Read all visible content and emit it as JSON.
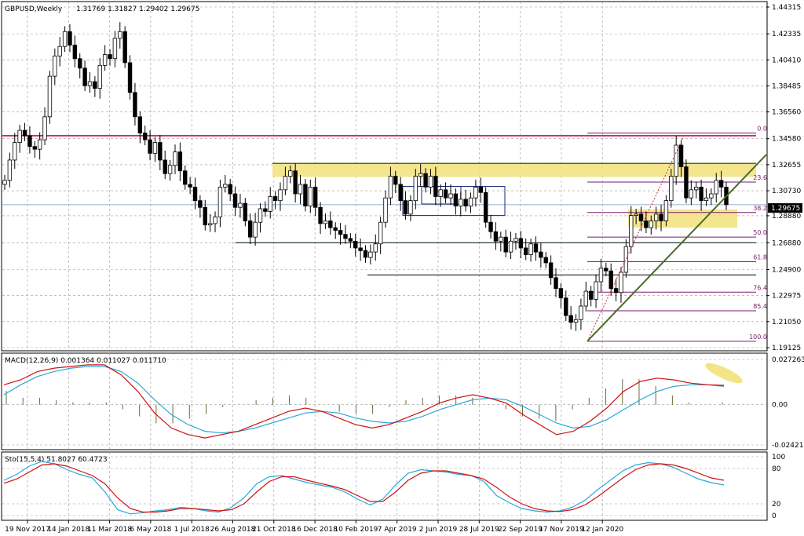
{
  "main_panel": {
    "title": "GBPUSD,Weekly",
    "ohlc": "1.31769 1.31827 1.29402 1.29675",
    "price_ticks": [
      "1.44315",
      "1.42335",
      "1.40410",
      "1.38485",
      "1.36560",
      "1.34580",
      "1.32655",
      "1.30730",
      "1.28880",
      "1.26880",
      "1.24900",
      "1.22975",
      "1.21050",
      "1.19125"
    ],
    "current_price": "1.29675",
    "fib_labels": [
      "0.0",
      "23.6",
      "38.2",
      "50.0",
      "61.8",
      "76.4",
      "85.4",
      "100.0"
    ]
  },
  "macd_panel": {
    "title": "MACD(12,26,9) 0.001364 0.011027 0.011710",
    "ticks": [
      "0.027263",
      "0.00",
      "-0.024213"
    ]
  },
  "stoch_panel": {
    "title": "Sto(15,5,4) 51.8027 60.4723",
    "ticks": [
      "100",
      "80",
      "20",
      "0"
    ]
  },
  "x_labels": [
    "19 Nov 2017",
    "14 Jan 2018",
    "11 Mar 2018",
    "6 May 2018",
    "1 Jul 2018",
    "26 Aug 2018",
    "21 Oct 2018",
    "16 Dec 2018",
    "10 Feb 2019",
    "7 Apr 2019",
    "2 Jun 2019",
    "28 Jul 2019",
    "22 Sep 2019",
    "17 Nov 2019",
    "12 Jan 2020"
  ],
  "colors": {
    "bull": "#ffffff",
    "bear": "#000000",
    "resistance": "#c0104a",
    "zone": "#f2e27a",
    "trend": "#4a6a2a",
    "fib": "#7a1a6a",
    "macd_signal": "#d01010",
    "macd_line": "#2aa8d8",
    "macd_hist": "#6a6a3a"
  },
  "chart_data": [
    {
      "type": "candlestick",
      "title": "GBPUSD,Weekly",
      "ylim": [
        1.19125,
        1.44315
      ],
      "x_tick_labels": [
        "19 Nov 2017",
        "14 Jan 2018",
        "11 Mar 2018",
        "6 May 2018",
        "1 Jul 2018",
        "26 Aug 2018",
        "21 Oct 2018",
        "16 Dec 2018",
        "10 Feb 2019",
        "7 Apr 2019",
        "2 Jun 2019",
        "28 Jul 2019",
        "22 Sep 2019",
        "17 Nov 2019",
        "12 Jan 2020"
      ],
      "close_series": [
        1.315,
        1.33,
        1.343,
        1.352,
        1.348,
        1.34,
        1.338,
        1.345,
        1.362,
        1.392,
        1.407,
        1.414,
        1.425,
        1.415,
        1.405,
        1.398,
        1.385,
        1.388,
        1.383,
        1.4,
        1.408,
        1.405,
        1.42,
        1.425,
        1.402,
        1.38,
        1.362,
        1.35,
        1.345,
        1.335,
        1.343,
        1.33,
        1.32,
        1.326,
        1.336,
        1.322,
        1.312,
        1.31,
        1.3,
        1.295,
        1.282,
        1.283,
        1.288,
        1.31,
        1.312,
        1.305,
        1.295,
        1.298,
        1.285,
        1.273,
        1.284,
        1.294,
        1.292,
        1.303,
        1.3,
        1.308,
        1.318,
        1.322,
        1.305,
        1.312,
        1.296,
        1.31,
        1.295,
        1.283,
        1.285,
        1.28,
        1.278,
        1.275,
        1.272,
        1.27,
        1.265,
        1.263,
        1.258,
        1.262,
        1.268,
        1.284,
        1.302,
        1.318,
        1.312,
        1.3,
        1.29,
        1.3,
        1.318,
        1.32,
        1.31,
        1.318,
        1.303,
        1.308,
        1.302,
        1.305,
        1.296,
        1.301,
        1.296,
        1.302,
        1.31,
        1.306,
        1.284,
        1.277,
        1.27,
        1.273,
        1.262,
        1.27,
        1.272,
        1.265,
        1.26,
        1.268,
        1.262,
        1.258,
        1.254,
        1.243,
        1.235,
        1.228,
        1.215,
        1.21,
        1.212,
        1.222,
        1.233,
        1.227,
        1.24,
        1.25,
        1.248,
        1.235,
        1.232,
        1.247,
        1.266,
        1.289,
        1.29,
        1.285,
        1.28,
        1.285,
        1.29,
        1.285,
        1.3,
        1.318,
        1.341,
        1.325,
        1.302,
        1.308,
        1.31,
        1.3,
        1.302,
        1.305,
        1.315,
        1.31,
        1.297
      ],
      "levels": {
        "resistance": 1.348,
        "support_1": 1.2688,
        "support_2": 1.245,
        "fib_0": 1.35,
        "fib_100": 1.196
      },
      "fibonacci": [
        {
          "level": "0.0",
          "price": 1.35
        },
        {
          "level": "23.6",
          "price": 1.3137
        },
        {
          "level": "38.2",
          "price": 1.2912
        },
        {
          "level": "50.0",
          "price": 1.273
        },
        {
          "level": "61.8",
          "price": 1.2548
        },
        {
          "level": "76.4",
          "price": 1.2323
        },
        {
          "level": "85.4",
          "price": 1.2185
        },
        {
          "level": "100.0",
          "price": 1.196
        }
      ]
    },
    {
      "type": "line",
      "title": "MACD(12,26,9) 0.001364 0.011027 0.011710",
      "ylim": [
        -0.024213,
        0.027263
      ],
      "series": [
        {
          "values": [
            0.012,
            0.015,
            0.02,
            0.022,
            0.023,
            0.024,
            0.024,
            0.018,
            0.008,
            -0.005,
            -0.014,
            -0.018,
            -0.02,
            -0.018,
            -0.016,
            -0.012,
            -0.008,
            -0.004,
            -0.002,
            -0.004,
            -0.008,
            -0.012,
            -0.014,
            -0.012,
            -0.008,
            -0.004,
            0.001,
            0.004,
            0.006,
            0.004,
            0.001,
            -0.006,
            -0.012,
            -0.018,
            -0.016,
            -0.01,
            -0.002,
            0.008,
            0.014,
            0.016,
            0.015,
            0.013,
            0.012,
            0.0117
          ]
        },
        {
          "values": [
            0.006,
            0.012,
            0.017,
            0.02,
            0.022,
            0.023,
            0.023,
            0.02,
            0.013,
            0.003,
            -0.006,
            -0.012,
            -0.016,
            -0.017,
            -0.016,
            -0.014,
            -0.011,
            -0.008,
            -0.005,
            -0.004,
            -0.005,
            -0.008,
            -0.01,
            -0.011,
            -0.01,
            -0.007,
            -0.003,
            0.0,
            0.003,
            0.004,
            0.003,
            -0.001,
            -0.006,
            -0.011,
            -0.014,
            -0.013,
            -0.009,
            -0.003,
            0.003,
            0.008,
            0.011,
            0.012,
            0.012,
            0.011
          ]
        },
        {
          "values": [
            0.006,
            0.003,
            0.003,
            0.002,
            0.001,
            0.001,
            0.001,
            -0.002,
            -0.005,
            -0.008,
            -0.008,
            -0.006,
            -0.004,
            -0.001,
            0.0,
            0.002,
            0.003,
            0.004,
            0.003,
            0.0,
            -0.003,
            -0.004,
            -0.004,
            -0.001,
            0.002,
            0.003,
            0.004,
            0.004,
            0.003,
            0.0,
            -0.002,
            -0.005,
            -0.006,
            -0.007,
            -0.002,
            0.003,
            0.007,
            0.011,
            0.011,
            0.008,
            0.004,
            0.001,
            0.0,
            0.001
          ]
        }
      ]
    },
    {
      "type": "line",
      "title": "Sto(15,5,4) 51.8027 60.4723",
      "ylim": [
        0,
        100
      ],
      "series": [
        {
          "values": [
            60,
            70,
            84,
            92,
            88,
            78,
            70,
            64,
            40,
            10,
            3,
            5,
            8,
            10,
            14,
            12,
            8,
            6,
            14,
            30,
            54,
            66,
            68,
            62,
            56,
            52,
            48,
            40,
            28,
            18,
            28,
            52,
            72,
            78,
            76,
            74,
            70,
            68,
            58,
            34,
            22,
            12,
            8,
            6,
            8,
            14,
            26,
            44,
            60,
            76,
            86,
            90,
            88,
            82,
            72,
            62,
            56,
            52
          ]
        },
        {
          "values": [
            55,
            62,
            74,
            86,
            88,
            84,
            76,
            68,
            54,
            30,
            12,
            6,
            6,
            8,
            12,
            12,
            10,
            8,
            10,
            20,
            40,
            58,
            66,
            66,
            60,
            55,
            50,
            44,
            34,
            24,
            24,
            40,
            60,
            72,
            76,
            76,
            72,
            68,
            62,
            48,
            32,
            20,
            12,
            8,
            7,
            10,
            18,
            32,
            48,
            64,
            78,
            86,
            88,
            86,
            80,
            72,
            64,
            60
          ]
        }
      ]
    }
  ]
}
